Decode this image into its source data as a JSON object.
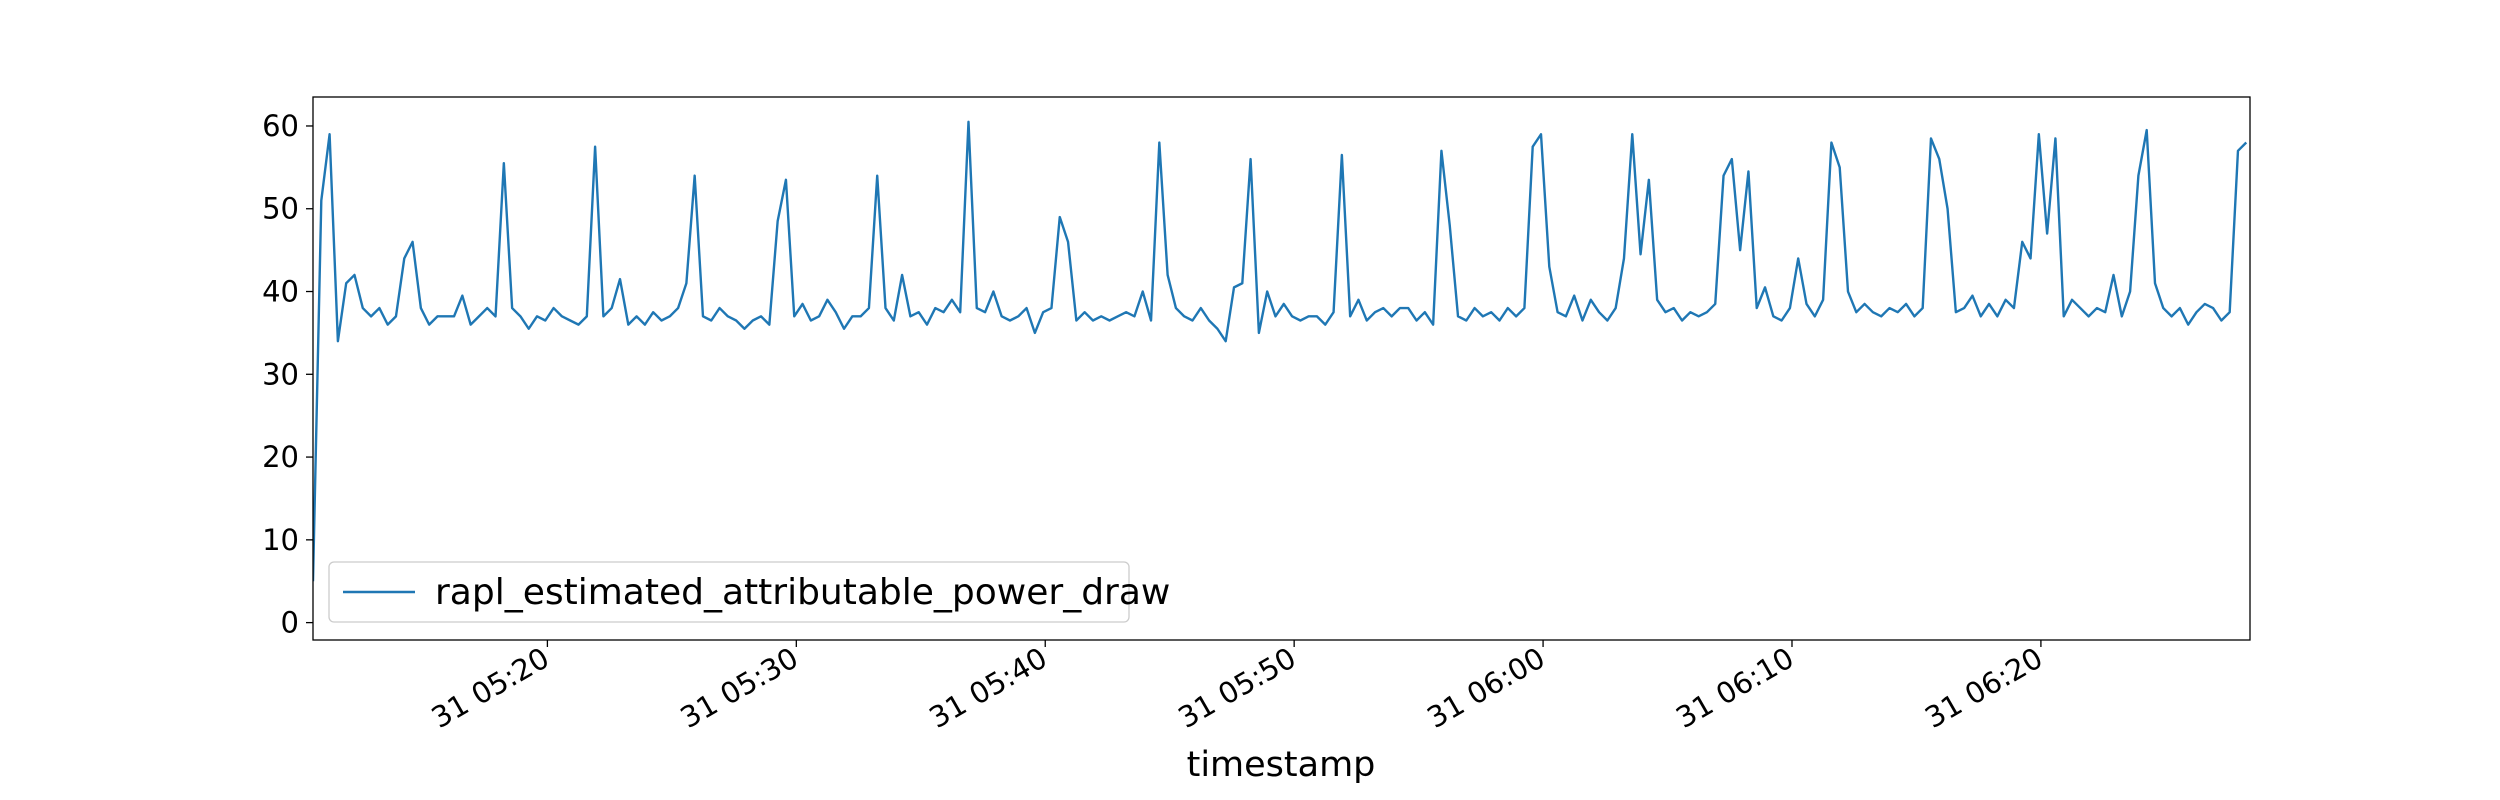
{
  "chart_data": {
    "type": "line",
    "xlabel": "timestamp",
    "x": [
      "31 05:10:35",
      "31 05:10:55",
      "31 05:11:15",
      "31 05:11:35",
      "31 05:11:55",
      "31 05:12:15",
      "31 05:12:35",
      "31 05:12:55",
      "31 05:13:15",
      "31 05:13:35",
      "31 05:13:55",
      "31 05:14:15",
      "31 05:14:35",
      "31 05:14:55",
      "31 05:15:15",
      "31 05:15:35",
      "31 05:15:55",
      "31 05:16:15",
      "31 05:16:35",
      "31 05:16:55",
      "31 05:17:15",
      "31 05:17:35",
      "31 05:17:55",
      "31 05:18:15",
      "31 05:18:35",
      "31 05:18:55",
      "31 05:19:15",
      "31 05:19:35",
      "31 05:19:55",
      "31 05:20:15",
      "31 05:20:35",
      "31 05:20:55",
      "31 05:21:15",
      "31 05:21:35",
      "31 05:21:55",
      "31 05:22:15",
      "31 05:22:35",
      "31 05:22:55",
      "31 05:23:15",
      "31 05:23:35",
      "31 05:23:55",
      "31 05:24:15",
      "31 05:24:35",
      "31 05:24:55",
      "31 05:25:15",
      "31 05:25:35",
      "31 05:25:55",
      "31 05:26:15",
      "31 05:26:35",
      "31 05:26:55",
      "31 05:27:15",
      "31 05:27:35",
      "31 05:27:55",
      "31 05:28:15",
      "31 05:28:35",
      "31 05:28:55",
      "31 05:29:15",
      "31 05:29:35",
      "31 05:29:55",
      "31 05:30:15",
      "31 05:30:35",
      "31 05:30:55",
      "31 05:31:15",
      "31 05:31:35",
      "31 05:31:55",
      "31 05:32:15",
      "31 05:32:35",
      "31 05:32:55",
      "31 05:33:15",
      "31 05:33:35",
      "31 05:33:55",
      "31 05:34:15",
      "31 05:34:35",
      "31 05:34:55",
      "31 05:35:15",
      "31 05:35:35",
      "31 05:35:55",
      "31 05:36:15",
      "31 05:36:35",
      "31 05:36:55",
      "31 05:37:15",
      "31 05:37:35",
      "31 05:37:55",
      "31 05:38:15",
      "31 05:38:35",
      "31 05:38:55",
      "31 05:39:15",
      "31 05:39:35",
      "31 05:39:55",
      "31 05:40:15",
      "31 05:40:35",
      "31 05:40:55",
      "31 05:41:15",
      "31 05:41:35",
      "31 05:41:55",
      "31 05:42:15",
      "31 05:42:35",
      "31 05:42:55",
      "31 05:43:15",
      "31 05:43:35",
      "31 05:43:55",
      "31 05:44:15",
      "31 05:44:35",
      "31 05:44:55",
      "31 05:45:15",
      "31 05:45:35",
      "31 05:45:55",
      "31 05:46:15",
      "31 05:46:35",
      "31 05:46:55",
      "31 05:47:15",
      "31 05:47:35",
      "31 05:47:55",
      "31 05:48:15",
      "31 05:48:35",
      "31 05:48:55",
      "31 05:49:15",
      "31 05:49:35",
      "31 05:49:55",
      "31 05:50:15",
      "31 05:50:35",
      "31 05:50:55",
      "31 05:51:15",
      "31 05:51:35",
      "31 05:51:55",
      "31 05:52:15",
      "31 05:52:35",
      "31 05:52:55",
      "31 05:53:15",
      "31 05:53:35",
      "31 05:53:55",
      "31 05:54:15",
      "31 05:54:35",
      "31 05:54:55",
      "31 05:55:15",
      "31 05:55:35",
      "31 05:55:55",
      "31 05:56:15",
      "31 05:56:35",
      "31 05:56:55",
      "31 05:57:15",
      "31 05:57:35",
      "31 05:57:55",
      "31 05:58:15",
      "31 05:58:35",
      "31 05:58:55",
      "31 05:59:15",
      "31 05:59:35",
      "31 05:59:55",
      "31 06:00:15",
      "31 06:00:35",
      "31 06:00:55",
      "31 06:01:15",
      "31 06:01:35",
      "31 06:01:55",
      "31 06:02:15",
      "31 06:02:35",
      "31 06:02:55",
      "31 06:03:15",
      "31 06:03:35",
      "31 06:03:55",
      "31 06:04:15",
      "31 06:04:35",
      "31 06:04:55",
      "31 06:05:15",
      "31 06:05:35",
      "31 06:05:55",
      "31 06:06:15",
      "31 06:06:35",
      "31 06:06:55",
      "31 06:07:15",
      "31 06:07:35",
      "31 06:07:55",
      "31 06:08:15",
      "31 06:08:35",
      "31 06:08:55",
      "31 06:09:15",
      "31 06:09:35",
      "31 06:09:55",
      "31 06:10:15",
      "31 06:10:35",
      "31 06:10:55",
      "31 06:11:15",
      "31 06:11:35",
      "31 06:11:55",
      "31 06:12:15",
      "31 06:12:35",
      "31 06:12:55",
      "31 06:13:15",
      "31 06:13:35",
      "31 06:13:55",
      "31 06:14:15",
      "31 06:14:35",
      "31 06:14:55",
      "31 06:15:15",
      "31 06:15:35",
      "31 06:15:55",
      "31 06:16:15",
      "31 06:16:35",
      "31 06:16:55",
      "31 06:17:15",
      "31 06:17:35",
      "31 06:17:55",
      "31 06:18:15",
      "31 06:18:35",
      "31 06:18:55",
      "31 06:19:15",
      "31 06:19:35",
      "31 06:19:55",
      "31 06:20:15",
      "31 06:20:35",
      "31 06:20:55",
      "31 06:21:15",
      "31 06:21:35",
      "31 06:21:55",
      "31 06:22:15",
      "31 06:22:35",
      "31 06:22:55",
      "31 06:23:15",
      "31 06:23:35",
      "31 06:23:55",
      "31 06:24:15",
      "31 06:24:35",
      "31 06:24:55",
      "31 06:25:15",
      "31 06:25:35",
      "31 06:25:55",
      "31 06:26:15",
      "31 06:26:35",
      "31 06:26:55",
      "31 06:27:15",
      "31 06:27:35",
      "31 06:27:55",
      "31 06:28:15"
    ],
    "series": [
      {
        "name": "rapl_estimated_attributable_power_draw",
        "color": "#1f77b4",
        "values": [
          5,
          51,
          59,
          34,
          41,
          42,
          38,
          37,
          38,
          36,
          37,
          44,
          46,
          38,
          36,
          37,
          37,
          37,
          39.5,
          36,
          37,
          38,
          37,
          55.5,
          38,
          37,
          35.5,
          37,
          36.5,
          38,
          37,
          36.5,
          36,
          37,
          57.5,
          37,
          38,
          41.5,
          36,
          37,
          36,
          37.5,
          36.5,
          37,
          38,
          41,
          54,
          37,
          36.5,
          38,
          37,
          36.5,
          35.5,
          36.5,
          37,
          36,
          48.5,
          53.5,
          37,
          38.5,
          36.5,
          37,
          39,
          37.5,
          35.5,
          37,
          37,
          38,
          54,
          38,
          36.5,
          42,
          37,
          37.5,
          36,
          38,
          37.5,
          39,
          37.5,
          60.5,
          38,
          37.5,
          40,
          37,
          36.5,
          37,
          38,
          35,
          37.5,
          38,
          49,
          46,
          36.5,
          37.5,
          36.5,
          37,
          36.5,
          37,
          37.5,
          37,
          40,
          36.5,
          58,
          42,
          38,
          37,
          36.5,
          38,
          36.5,
          35.5,
          34,
          40.5,
          41,
          56,
          35,
          40,
          37,
          38.5,
          37,
          36.5,
          37,
          37,
          36,
          37.5,
          56.5,
          37,
          39,
          36.5,
          37.5,
          38,
          37,
          38,
          38,
          36.5,
          37.5,
          36,
          57,
          48,
          37,
          36.5,
          38,
          37,
          37.5,
          36.5,
          38,
          37,
          38,
          57.5,
          59,
          43,
          37.5,
          37,
          39.5,
          36.5,
          39,
          37.5,
          36.5,
          38,
          44,
          59,
          44.5,
          53.5,
          39,
          37.5,
          38,
          36.5,
          37.5,
          37,
          37.5,
          38.5,
          54,
          56,
          45,
          54.5,
          38,
          40.5,
          37,
          36.5,
          38,
          44,
          38.5,
          37,
          39,
          58,
          55,
          40,
          37.5,
          38.5,
          37.5,
          37,
          38,
          37.5,
          38.5,
          37,
          38,
          58.5,
          56,
          50,
          37.5,
          38,
          39.5,
          37,
          38.5,
          37,
          39,
          38,
          46,
          44,
          59,
          47,
          58.5,
          37,
          39,
          38,
          37,
          38,
          37.5,
          42,
          37,
          40,
          54,
          59.5,
          41,
          38,
          37,
          38,
          36,
          37.5,
          38.5,
          38,
          36.5,
          37.5,
          57,
          58
        ]
      }
    ],
    "xlim": [
      "31 05:10:35",
      "31 06:28:24"
    ],
    "xticks": [
      "31 05:20",
      "31 05:30",
      "31 05:40",
      "31 05:50",
      "31 06:00",
      "31 06:10",
      "31 06:20"
    ],
    "ylim": [
      -2.1,
      63.5
    ],
    "yticks": [
      0,
      10,
      20,
      30,
      40,
      50,
      60
    ],
    "legend": "lower left"
  }
}
